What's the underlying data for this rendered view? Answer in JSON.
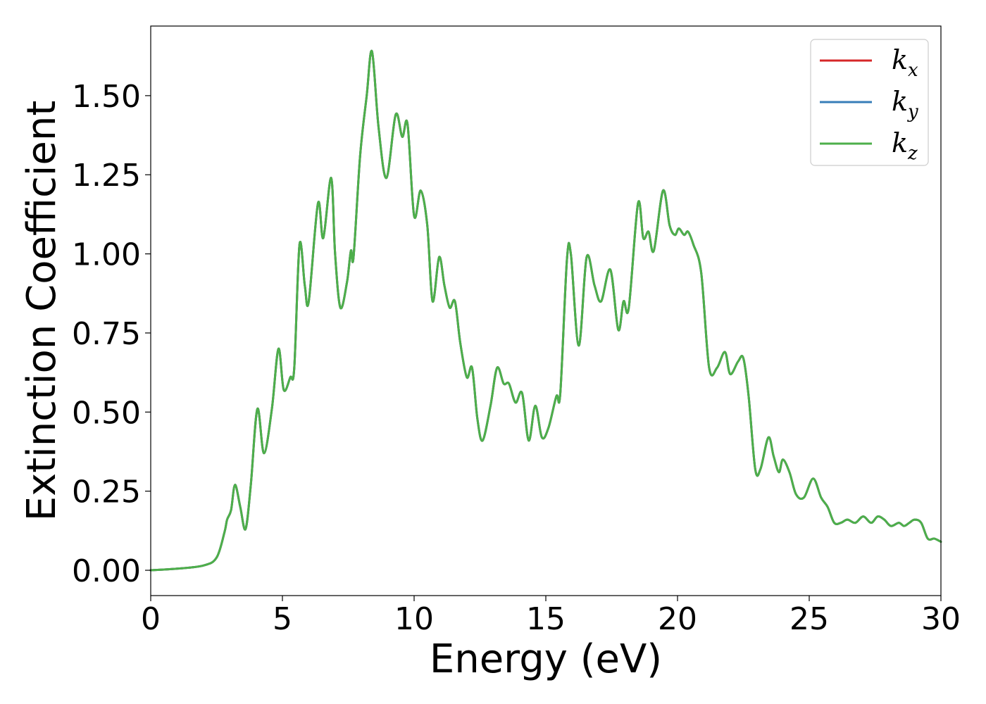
{
  "chart_data": {
    "type": "line",
    "title": "",
    "xlabel": "Energy (eV)",
    "ylabel": "Extinction Coefficient",
    "xlim": [
      0,
      30
    ],
    "ylim": [
      -0.08,
      1.72
    ],
    "xticks": [
      "0",
      "5",
      "10",
      "15",
      "20",
      "25",
      "30"
    ],
    "yticks": [
      "0.00",
      "0.25",
      "0.50",
      "0.75",
      "1.00",
      "1.25",
      "1.50"
    ],
    "grid": false,
    "legend_position": "top-right",
    "series": [
      {
        "name": "k",
        "name_subscript": "x",
        "color": "#d62728",
        "x": [
          0,
          1,
          2,
          2.5,
          2.8,
          2.9,
          3.05,
          3.2,
          3.4,
          3.6,
          3.8,
          4.05,
          4.3,
          4.6,
          4.85,
          5.05,
          5.3,
          5.45,
          5.65,
          5.85,
          6.0,
          6.35,
          6.55,
          6.85,
          7.0,
          7.2,
          7.45,
          7.6,
          7.7,
          7.95,
          8.2,
          8.4,
          8.65,
          8.95,
          9.3,
          9.55,
          9.75,
          10.0,
          10.25,
          10.5,
          10.7,
          10.95,
          11.15,
          11.35,
          11.55,
          11.75,
          12.0,
          12.2,
          12.4,
          12.6,
          12.9,
          13.15,
          13.4,
          13.6,
          13.85,
          14.1,
          14.35,
          14.6,
          14.85,
          15.1,
          15.4,
          15.55,
          15.8,
          15.95,
          16.25,
          16.55,
          16.85,
          17.1,
          17.45,
          17.75,
          17.95,
          18.15,
          18.5,
          18.7,
          18.9,
          19.1,
          19.45,
          19.7,
          19.9,
          20.05,
          20.25,
          20.4,
          20.6,
          20.9,
          21.2,
          21.5,
          21.8,
          22.0,
          22.3,
          22.5,
          22.7,
          22.95,
          23.15,
          23.45,
          23.65,
          23.85,
          24.0,
          24.25,
          24.5,
          24.8,
          25.15,
          25.45,
          25.7,
          25.95,
          26.2,
          26.45,
          26.75,
          27.05,
          27.35,
          27.6,
          27.85,
          28.1,
          28.4,
          28.6,
          28.8,
          29.0,
          29.25,
          29.5,
          29.75,
          30.0
        ],
        "y": [
          0,
          0.005,
          0.015,
          0.04,
          0.12,
          0.16,
          0.19,
          0.27,
          0.2,
          0.13,
          0.27,
          0.51,
          0.37,
          0.51,
          0.7,
          0.57,
          0.61,
          0.64,
          1.03,
          0.9,
          0.85,
          1.16,
          1.05,
          1.24,
          1.0,
          0.83,
          0.91,
          1.01,
          0.99,
          1.31,
          1.5,
          1.64,
          1.4,
          1.24,
          1.44,
          1.37,
          1.41,
          1.12,
          1.2,
          1.09,
          0.85,
          0.99,
          0.9,
          0.83,
          0.85,
          0.72,
          0.61,
          0.64,
          0.48,
          0.41,
          0.52,
          0.64,
          0.59,
          0.59,
          0.53,
          0.56,
          0.41,
          0.52,
          0.42,
          0.45,
          0.55,
          0.56,
          0.98,
          1.0,
          0.71,
          0.99,
          0.9,
          0.85,
          0.95,
          0.76,
          0.85,
          0.83,
          1.16,
          1.05,
          1.07,
          1.01,
          1.2,
          1.09,
          1.06,
          1.08,
          1.06,
          1.07,
          1.03,
          0.94,
          0.64,
          0.64,
          0.69,
          0.62,
          0.66,
          0.67,
          0.55,
          0.32,
          0.32,
          0.42,
          0.36,
          0.31,
          0.35,
          0.31,
          0.24,
          0.23,
          0.29,
          0.23,
          0.2,
          0.15,
          0.15,
          0.16,
          0.15,
          0.17,
          0.15,
          0.17,
          0.16,
          0.14,
          0.15,
          0.14,
          0.15,
          0.16,
          0.15,
          0.1,
          0.1,
          0.09
        ]
      },
      {
        "name": "k",
        "name_subscript": "y",
        "color": "#377eb8",
        "same_as_series": 0
      },
      {
        "name": "k",
        "name_subscript": "z",
        "color": "#4daf4a",
        "same_as_series": 0
      }
    ]
  }
}
